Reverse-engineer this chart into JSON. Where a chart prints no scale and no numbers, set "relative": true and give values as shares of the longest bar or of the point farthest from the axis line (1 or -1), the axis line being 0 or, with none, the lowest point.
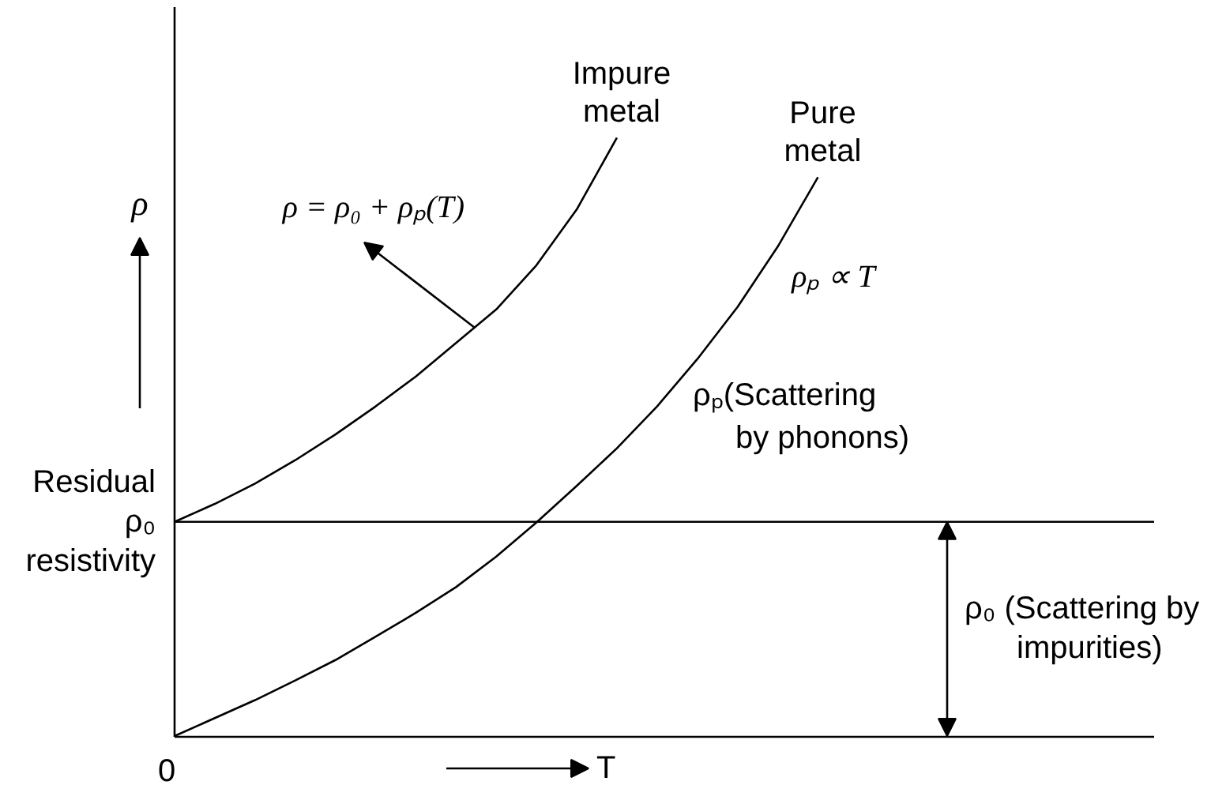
{
  "chart_data": {
    "type": "line",
    "relative": true,
    "xlabel": "T",
    "ylabel": "ρ",
    "categories": [
      null,
      null,
      null,
      null,
      null,
      null,
      null,
      null,
      null,
      null,
      null,
      null,
      null,
      null,
      null,
      null,
      null,
      null,
      null,
      null,
      null,
      null,
      null,
      null,
      null
    ],
    "series": [
      {
        "name": "Impure metal",
        "color": "#000000",
        "values": [
          0.358,
          0.388,
          0.422,
          0.461,
          0.504,
          0.551,
          0.601,
          0.657,
          0.713,
          0.787,
          0.88,
          1,
          null,
          null,
          null,
          null,
          null,
          null,
          null,
          null,
          null,
          null,
          null,
          null,
          null
        ]
      },
      {
        "name": "Pure metal",
        "color": "#000000",
        "values": [
          0,
          0.03,
          0.06,
          0.093,
          0.127,
          0.166,
          0.206,
          0.249,
          0.3,
          0.357,
          0.418,
          0.481,
          0.551,
          0.63,
          0.717,
          0.818,
          0.934,
          null,
          null,
          null,
          null,
          null,
          null,
          null,
          null
        ]
      }
    ],
    "ref_lines": [
      {
        "axis": "y",
        "value": 0.358,
        "label": "Residual ρ₀ resistivity",
        "color": "#000000"
      }
    ],
    "annotations": [
      "ρ = ρ₀ + ρₚ(T)",
      "ρₚ ∝ T",
      "ρₚ(Scattering by phonons)",
      {
        "text": "ρ₀ (Scattering by impurities)",
        "y": 0.358
      },
      "0"
    ],
    "line_style": "solid",
    "marker": "none"
  }
}
